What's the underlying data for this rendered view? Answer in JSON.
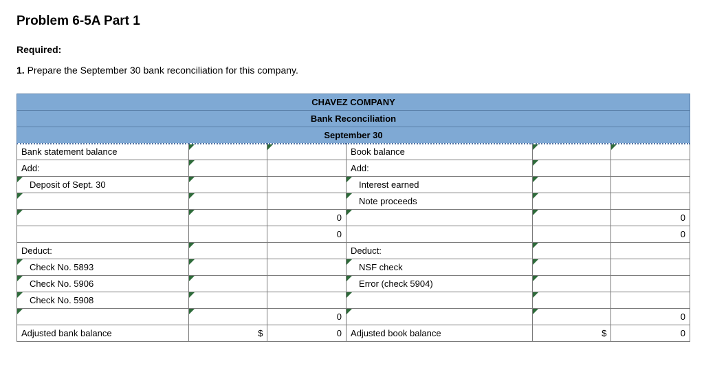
{
  "heading": "Problem 6-5A Part 1",
  "required_label": "Required:",
  "required_item_num": "1.",
  "required_item_text": "Prepare the September 30 bank reconciliation for this company.",
  "header": {
    "company": "CHAVEZ COMPANY",
    "title": "Bank Reconciliation",
    "date": "September 30"
  },
  "bank": {
    "stmt_balance_label": "Bank statement balance",
    "add_label": "Add:",
    "add_items": [
      "Deposit of Sept. 30"
    ],
    "subtotal1": "0",
    "subtotal2": "0",
    "deduct_label": "Deduct:",
    "deduct_items": [
      "Check No. 5893",
      "Check No. 5906",
      "Check No. 5908"
    ],
    "deduct_subtotal": "0",
    "adjusted_label": "Adjusted bank balance",
    "adjusted_value": "0"
  },
  "book": {
    "balance_label": "Book balance",
    "add_label": "Add:",
    "add_items": [
      "Interest earned",
      "Note proceeds"
    ],
    "subtotal1": "0",
    "subtotal2": "0",
    "deduct_label": "Deduct:",
    "deduct_items": [
      "NSF check",
      "Error (check 5904)"
    ],
    "deduct_subtotal": "0",
    "adjusted_label": "Adjusted book balance",
    "adjusted_value": "0"
  },
  "colors": {
    "header_bg": "#7fa9d4",
    "border": "#7a7a7a",
    "triangle": "#2e6b3a"
  }
}
